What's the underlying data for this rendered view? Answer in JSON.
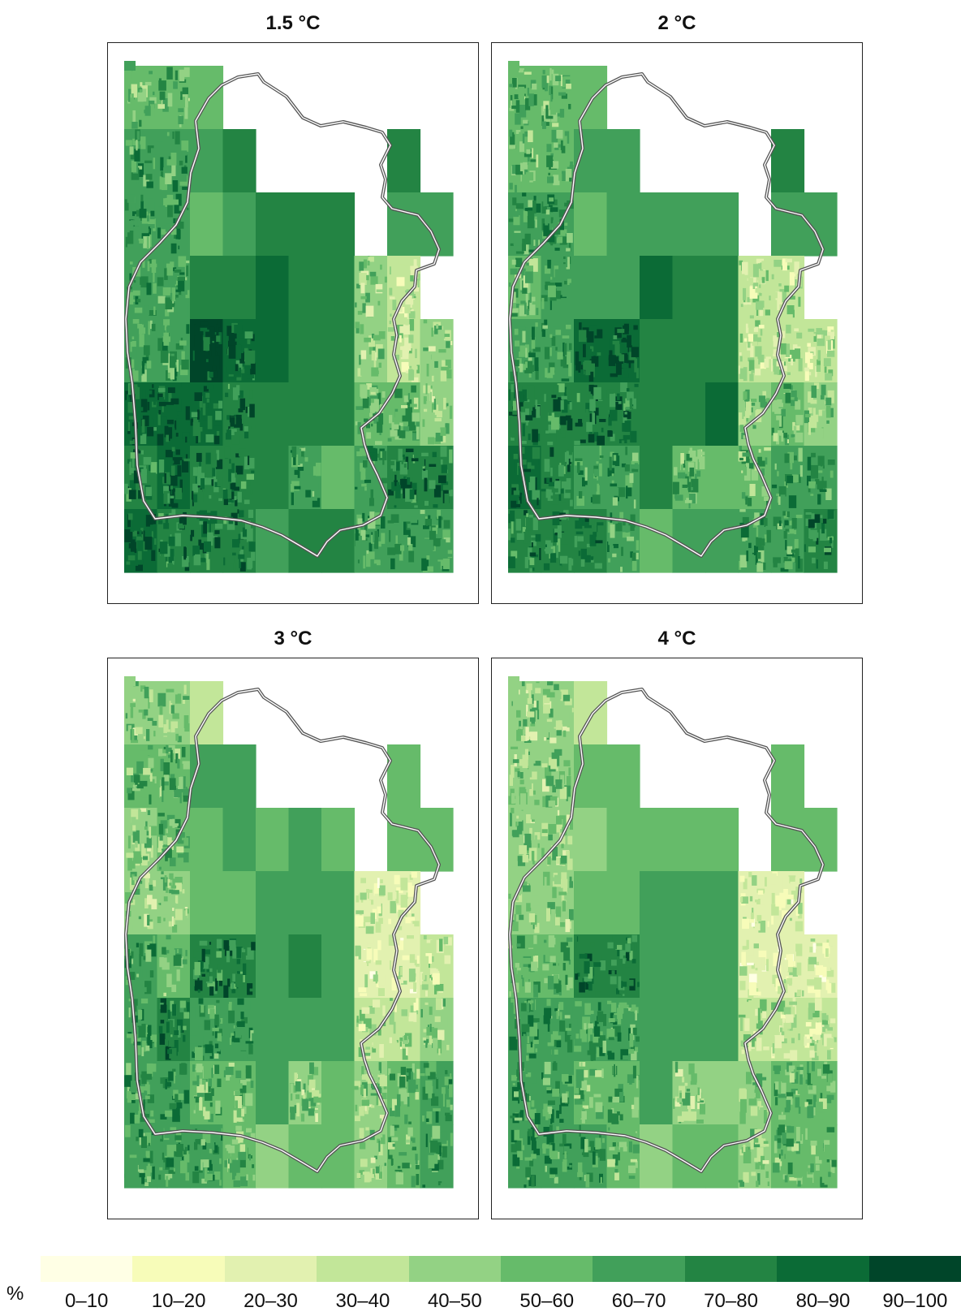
{
  "panels": [
    {
      "title": "1.5 °C",
      "seed": 11,
      "offset": 0.6
    },
    {
      "title": "2 °C",
      "seed": 23,
      "offset": 0.2
    },
    {
      "title": "3 °C",
      "seed": 37,
      "offset": -0.6
    },
    {
      "title": "4 °C",
      "seed": 51,
      "offset": -0.9
    }
  ],
  "legend": {
    "unit": "%",
    "bins": [
      {
        "label": "0–10",
        "color": "#ffffe5"
      },
      {
        "label": "10–20",
        "color": "#f7fcb9"
      },
      {
        "label": "20–30",
        "color": "#e2f1b0"
      },
      {
        "label": "30–40",
        "color": "#c2e699"
      },
      {
        "label": "40–50",
        "color": "#93d284"
      },
      {
        "label": "50–60",
        "color": "#66bb6a"
      },
      {
        "label": "60–70",
        "color": "#41a05a"
      },
      {
        "label": "70–80",
        "color": "#238443"
      },
      {
        "label": "80–90",
        "color": "#0b6b36"
      },
      {
        "label": "90–100",
        "color": "#004529"
      }
    ]
  }
}
